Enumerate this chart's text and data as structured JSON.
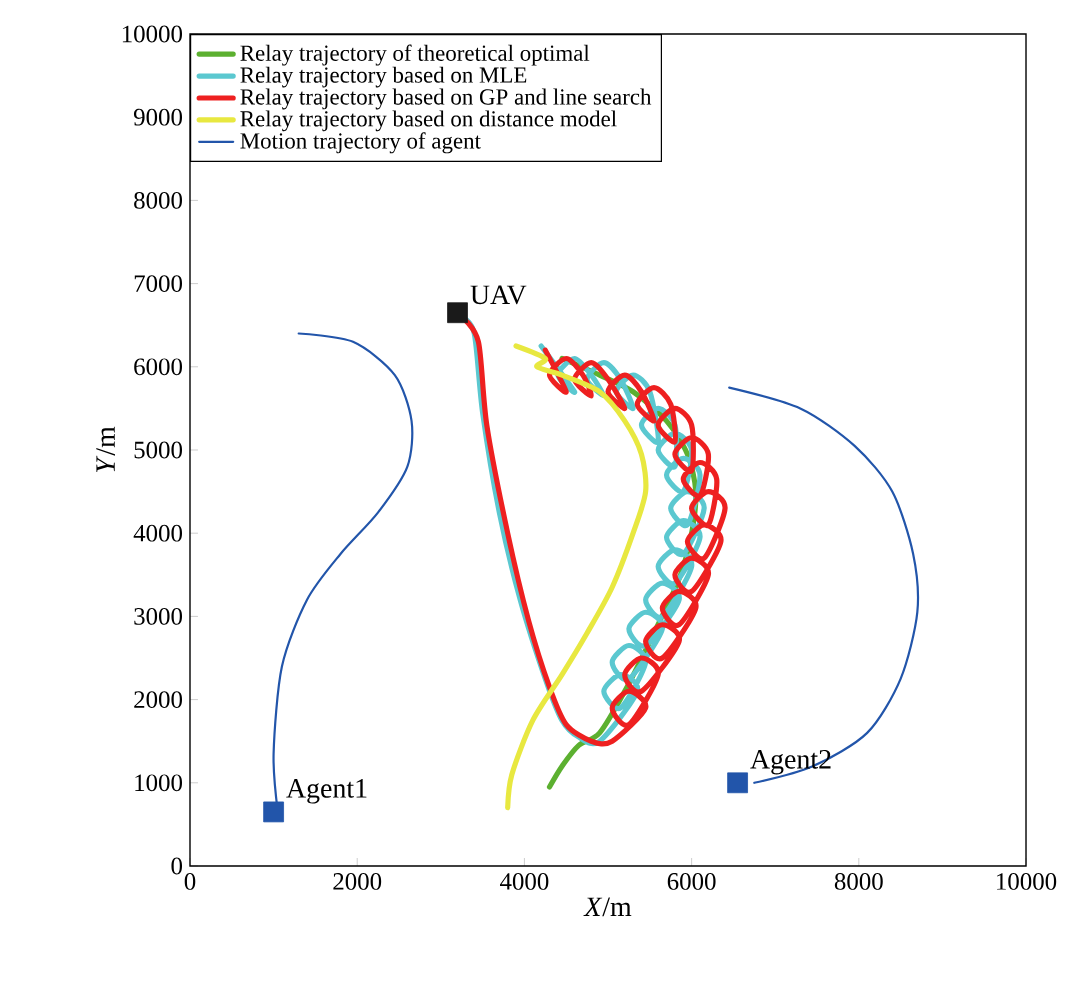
{
  "chart_data": {
    "type": "line",
    "xlabel": "*X*/m",
    "ylabel": "*Y*/m",
    "xlim": [
      0,
      10000
    ],
    "ylim": [
      0,
      10000
    ],
    "xticks": [
      0,
      2000,
      4000,
      6000,
      8000,
      10000
    ],
    "yticks": [
      0,
      1000,
      2000,
      3000,
      4000,
      5000,
      6000,
      7000,
      8000,
      9000,
      10000
    ],
    "legend": "top left",
    "grid": false,
    "series": [
      {
        "name": "Relay trajectory of theoretical optimal",
        "color": "#5cb030",
        "x": [
          4300,
          4450,
          4650,
          4900,
          5200,
          5550,
          5850,
          6000,
          6050,
          5950,
          5700,
          5300,
          4900,
          4450
        ],
        "values": [
          950,
          1200,
          1450,
          1600,
          2100,
          2800,
          3450,
          4000,
          4500,
          4950,
          5350,
          5700,
          5900,
          6100
        ]
      },
      {
        "name": "Relay trajectory based on MLE",
        "color": "#5bc8d0",
        "x": [
          3250,
          3400,
          3500,
          3700,
          3950,
          4250,
          4450,
          4650,
          4900,
          5350,
          5150,
          4950,
          5150,
          5450,
          5250,
          5050,
          5250,
          5650,
          5450,
          5250,
          5450,
          5850,
          5650,
          5450,
          5650,
          6000,
          5800,
          5600,
          5800,
          6100,
          5900,
          5700,
          5900,
          6150,
          5950,
          5750,
          5950,
          6100,
          5900,
          5700,
          5900,
          6000,
          5800,
          5600,
          5800,
          5800,
          5600,
          5400,
          5600,
          5500,
          5300,
          5100,
          5300,
          5150,
          4950,
          4750,
          4950,
          4800,
          4600,
          4400,
          4600,
          4200
        ],
        "values": [
          6600,
          6400,
          5450,
          4250,
          3200,
          2250,
          1750,
          1550,
          1500,
          2100,
          2300,
          2100,
          1900,
          2450,
          2650,
          2450,
          2250,
          2850,
          3050,
          2850,
          2650,
          3200,
          3400,
          3200,
          3000,
          3600,
          3800,
          3600,
          3400,
          3950,
          4150,
          3950,
          3750,
          4300,
          4500,
          4300,
          4100,
          4700,
          4900,
          4700,
          4500,
          5000,
          5200,
          5000,
          4800,
          5300,
          5500,
          5300,
          5100,
          5700,
          5900,
          5700,
          5500,
          5850,
          6050,
          5850,
          5650,
          5900,
          6100,
          5900,
          5700,
          6250
        ]
      },
      {
        "name": "Relay trajectory based on GP and line search",
        "color": "#ee2020",
        "x": [
          3250,
          3450,
          3550,
          3800,
          4050,
          4300,
          4500,
          4800,
          5050,
          5450,
          5250,
          5050,
          5250,
          5600,
          5400,
          5200,
          5400,
          5850,
          5650,
          5450,
          5650,
          6050,
          5850,
          5650,
          5850,
          6200,
          6000,
          5800,
          6000,
          6350,
          6150,
          5950,
          6150,
          6400,
          6200,
          6000,
          6200,
          6300,
          6100,
          5900,
          6100,
          6200,
          6000,
          5800,
          6000,
          6000,
          5800,
          5600,
          5800,
          5750,
          5550,
          5350,
          5550,
          5400,
          5200,
          5000,
          5200,
          5000,
          4800,
          4600,
          4800,
          4700,
          4500,
          4300,
          4500,
          4250
        ],
        "values": [
          6600,
          6300,
          5300,
          4000,
          2950,
          2150,
          1700,
          1500,
          1500,
          1900,
          2100,
          1900,
          1700,
          2300,
          2500,
          2300,
          2100,
          2700,
          2900,
          2700,
          2500,
          3100,
          3300,
          3100,
          2900,
          3500,
          3700,
          3500,
          3300,
          3900,
          4100,
          3900,
          3700,
          4300,
          4500,
          4300,
          4100,
          4650,
          4850,
          4650,
          4450,
          4950,
          5150,
          4950,
          4750,
          5300,
          5500,
          5300,
          5100,
          5550,
          5750,
          5550,
          5350,
          5700,
          5900,
          5700,
          5500,
          5850,
          6050,
          5850,
          5650,
          5900,
          6100,
          5900,
          5700,
          6200
        ]
      },
      {
        "name": "Relay trajectory based on distance model",
        "color": "#e8e840",
        "x": [
          3800,
          3850,
          4100,
          4450,
          4750,
          5050,
          5300,
          5450,
          5400,
          5200,
          4900,
          4450,
          4150,
          4250,
          3900
        ],
        "values": [
          700,
          1100,
          1750,
          2300,
          2800,
          3350,
          4000,
          4500,
          4950,
          5350,
          5700,
          5900,
          6000,
          6100,
          6250
        ]
      },
      {
        "name": "Motion trajectory of agent",
        "color": "#2255aa",
        "x": [
          1050,
          1000,
          1100,
          1400,
          1800,
          2250,
          2600,
          2650,
          2450,
          1950,
          1300
        ],
        "values": [
          650,
          1350,
          2400,
          3200,
          3750,
          4250,
          4800,
          5350,
          5900,
          6300,
          6400
        ]
      },
      {
        "color": "#2255aa",
        "x": [
          6750,
          7450,
          8100,
          8500,
          8700,
          8650,
          8400,
          7950,
          7300,
          6450
        ],
        "values": [
          1000,
          1200,
          1600,
          2250,
          3050,
          3750,
          4500,
          5050,
          5500,
          5750
        ]
      },
      {
        "type": "scatter",
        "marker": "square",
        "x": [
          3200,
          1000,
          6550
        ],
        "values": [
          6650,
          650,
          1000
        ],
        "colors": [
          "#1a1a1a",
          "#2255aa",
          "#2255aa"
        ]
      }
    ],
    "annotations": [
      {
        "text": "UAV",
        "x": 3200,
        "y": 6650
      },
      {
        "text": "Agent1",
        "x": 1000,
        "y": 650
      },
      {
        "text": "Agent2",
        "x": 6550,
        "y": 1000
      }
    ]
  }
}
